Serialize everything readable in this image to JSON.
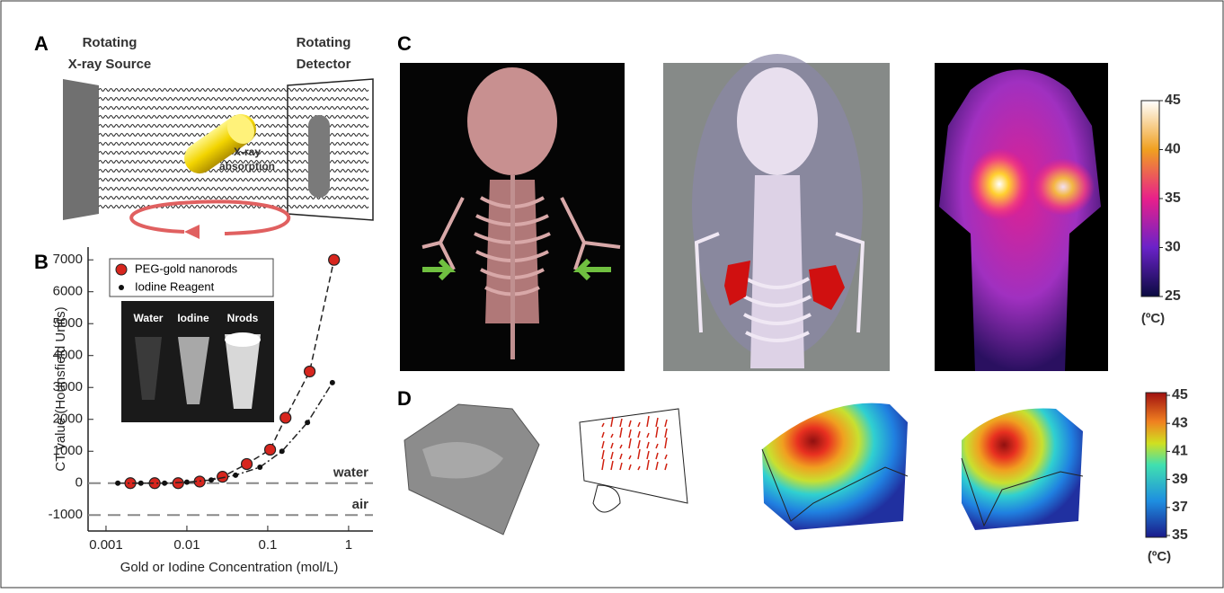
{
  "panel_labels": [
    "A",
    "B",
    "C",
    "D"
  ],
  "panel_a": {
    "source_label": [
      "Rotating",
      "X-ray Source"
    ],
    "detector_label": [
      "Rotating",
      "Detector"
    ],
    "absorption_label": [
      "X-ray",
      "absorption"
    ]
  },
  "chart_data": {
    "type": "scatter",
    "x_label": "Gold or Iodine Concentration (mol/L)",
    "y_label": "CT value (Hounsfield Units)",
    "log_x": true,
    "xlim": [
      0.0006,
      2
    ],
    "xticks": [
      0.001,
      0.01,
      0.1,
      1
    ],
    "ylim": [
      -1500,
      7400
    ],
    "yticks": [
      -1000,
      0,
      1000,
      2000,
      3000,
      4000,
      5000,
      6000,
      7000
    ],
    "series": [
      {
        "name": "PEG-gold nanorods",
        "color": "#d7261e",
        "x": [
          0.002,
          0.004,
          0.0078,
          0.0144,
          0.0276,
          0.055,
          0.107,
          0.166,
          0.33,
          0.66
        ],
        "values": [
          0,
          0,
          0,
          50,
          200,
          600,
          1050,
          2050,
          3500,
          7000
        ]
      },
      {
        "name": "Iodine Reagent",
        "color": "#111111",
        "x": [
          0.0014,
          0.0027,
          0.0053,
          0.01,
          0.02,
          0.04,
          0.08,
          0.15,
          0.31,
          0.63
        ],
        "values": [
          0,
          0,
          0,
          30,
          100,
          250,
          500,
          1000,
          1900,
          3150
        ]
      }
    ],
    "reference_lines": [
      {
        "label": "water",
        "value": 0
      },
      {
        "label": "air",
        "value": -1000
      }
    ],
    "inset_labels": [
      "Water",
      "Iodine",
      "Nrods"
    ]
  },
  "panel_c": {
    "colorbar": {
      "clim": [
        25,
        45
      ],
      "ticks": [
        25,
        30,
        35,
        40,
        45
      ],
      "unit": "(ºC)"
    }
  },
  "panel_d": {
    "colorbar": {
      "clim": [
        35,
        45
      ],
      "ticks": [
        35,
        37,
        39,
        41,
        43,
        45
      ],
      "unit": "(ºC)"
    }
  }
}
